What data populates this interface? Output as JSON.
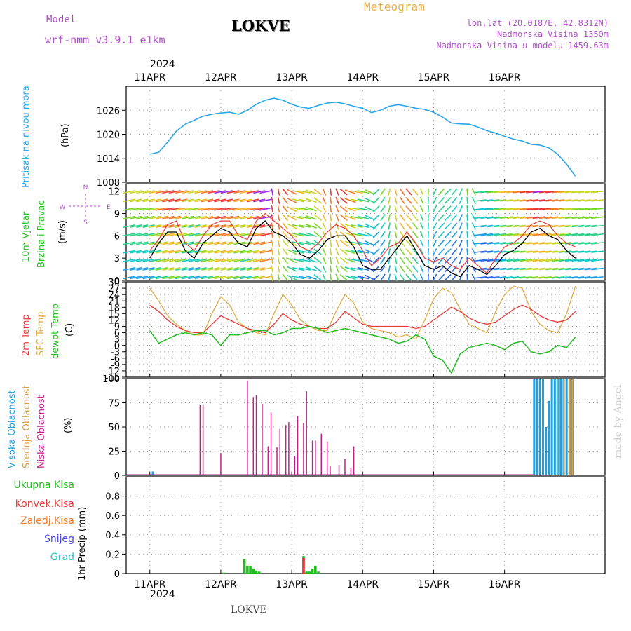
{
  "header": {
    "model_label": "Model",
    "model_name": "wrf-nmm_v3.9.1 e1km",
    "station": "LOKVE",
    "chart_name": "Meteogram",
    "coords": "lon,lat (20.0187E, 42.8312N)",
    "altitude": "Nadmorska Visina 1350m",
    "model_altitude": "Nadmorska Visina u modelu 1459.63m",
    "year_top": "2024",
    "year_bottom": "2024",
    "footer_station": "LOKVE",
    "watermark": "made by Angel"
  },
  "colors": {
    "pressure": "#2ba6e6",
    "temp2m": "#e83a3a",
    "sfc_temp": "#dcae4a",
    "dewpt": "#22bb22",
    "high_cloud": "#1e9fe0",
    "mid_cloud": "#d4a24a",
    "low_cloud": "#c0208a",
    "total_rain": "#22bb22",
    "conv_rain": "#e83a3a",
    "frozen_rain": "#f07a2a",
    "snow": "#4a4ae0",
    "hail": "#2ac0c0",
    "wind_speed": "#000000",
    "gust": "#e83a3a",
    "model_text": "#b050c8",
    "meteogram_text": "#e0b050"
  },
  "chart_data": [
    {
      "type": "line",
      "id": "pressure",
      "ylabel_lines": [
        "Pritisak na nivou mora"
      ],
      "unit": "(hPa)",
      "x_ticks": [
        "11APR",
        "12APR",
        "13APR",
        "14APR",
        "15APR",
        "16APR"
      ],
      "ylim": [
        1008,
        1032
      ],
      "y_ticks": [
        1008,
        1014,
        1020,
        1026
      ],
      "grid": true,
      "x": [
        0,
        3,
        6,
        9,
        12,
        15,
        18,
        21,
        24,
        27,
        30,
        33,
        36,
        39,
        42,
        45,
        48,
        51,
        54,
        57,
        60,
        63,
        66,
        69,
        72,
        75,
        78,
        81,
        84,
        87,
        90,
        93,
        96,
        99,
        102,
        105,
        108,
        111,
        114,
        117,
        120,
        123,
        126,
        129,
        132,
        135,
        138,
        141,
        144
      ],
      "series": [
        {
          "values": [
            1015,
            1015.5,
            1018,
            1020.8,
            1022.5,
            1023.5,
            1024.5,
            1025,
            1025.3,
            1025.5,
            1025,
            1026,
            1027.5,
            1028.5,
            1029,
            1028.5,
            1027.5,
            1026.8,
            1026.5,
            1027.2,
            1027.8,
            1028,
            1027.6,
            1027,
            1026.5,
            1025.4,
            1026,
            1027,
            1027.4,
            1027,
            1026.5,
            1026.2,
            1025.5,
            1024.3,
            1022.8,
            1022.6,
            1022.5,
            1021.8,
            1020.9,
            1020.3,
            1019.5,
            1018.8,
            1018.3,
            1017.5,
            1017.3,
            1016.6,
            1015,
            1012.5,
            1009.5
          ]
        }
      ]
    },
    {
      "type": "line",
      "id": "wind",
      "ylabel_lines": [
        "10m Vjetar",
        "Brzina i Pravac"
      ],
      "unit": "(m/s)",
      "compass": [
        "N",
        "S",
        "W",
        "E"
      ],
      "ylim": [
        0,
        13
      ],
      "y_ticks": [
        0,
        3,
        6,
        9,
        12
      ],
      "grid": true,
      "x": [
        0,
        3,
        6,
        9,
        12,
        15,
        18,
        21,
        24,
        27,
        30,
        33,
        36,
        39,
        42,
        45,
        48,
        51,
        54,
        57,
        60,
        63,
        66,
        69,
        72,
        75,
        78,
        81,
        84,
        87,
        90,
        93,
        96,
        99,
        102,
        105,
        108,
        111,
        114,
        117,
        120,
        123,
        126,
        129,
        132,
        135,
        138,
        141,
        144
      ],
      "series": [
        {
          "values": [
            3,
            5,
            6.5,
            6.5,
            4,
            3,
            5,
            6,
            7,
            6.5,
            5,
            4.5,
            7,
            8,
            6.5,
            6,
            5,
            3.5,
            3,
            4,
            5.5,
            6,
            6,
            4.5,
            2,
            1.5,
            1.5,
            3,
            4.5,
            6,
            4,
            2,
            1.5,
            2,
            1,
            0.5,
            2,
            1.5,
            0.8,
            2,
            3.5,
            4,
            5,
            6.5,
            7,
            6,
            5.5,
            4,
            3
          ]
        },
        {
          "values": [
            4,
            5.5,
            7.5,
            8,
            5,
            4,
            6,
            7.5,
            8,
            8,
            6,
            5.5,
            8,
            9,
            8,
            7,
            6,
            4.5,
            4,
            5,
            6.5,
            7.5,
            7,
            6,
            4,
            2,
            3,
            4.5,
            5,
            6.5,
            5,
            3,
            2.5,
            3,
            2,
            1.5,
            3,
            2,
            1,
            3,
            4.5,
            5,
            6,
            7.5,
            8,
            7.5,
            6,
            5,
            4.5
          ]
        }
      ]
    },
    {
      "type": "line",
      "id": "temperature",
      "ylabel_lines": [
        "2m Temp",
        "SFC Temp",
        "dewpt Temp"
      ],
      "unit": "(C)",
      "ylim": [
        -15,
        30
      ],
      "y_ticks": [
        -15,
        -12,
        -9,
        -6,
        -3,
        0,
        3,
        6,
        9,
        12,
        15,
        18,
        21,
        24,
        27,
        30
      ],
      "grid": true,
      "x": [
        0,
        3,
        6,
        9,
        12,
        15,
        18,
        21,
        24,
        27,
        30,
        33,
        36,
        39,
        42,
        45,
        48,
        51,
        54,
        57,
        60,
        63,
        66,
        69,
        72,
        75,
        78,
        81,
        84,
        87,
        90,
        93,
        96,
        99,
        102,
        105,
        108,
        111,
        114,
        117,
        120,
        123,
        126,
        129,
        132,
        135,
        138,
        141,
        144
      ],
      "series": [
        {
          "name": "2m Temp",
          "values": [
            19,
            16,
            12,
            9,
            7,
            6,
            6,
            10,
            14,
            12,
            10,
            8,
            7,
            6,
            10,
            15,
            12,
            10,
            9,
            8,
            8,
            11,
            16,
            13,
            10,
            9,
            9,
            9,
            9,
            9,
            8,
            9,
            12,
            15,
            18,
            16,
            13,
            11,
            10,
            11,
            14,
            17,
            19,
            17,
            14,
            12,
            11,
            12,
            16
          ]
        },
        {
          "name": "SFC Temp",
          "values": [
            27,
            21,
            14,
            10,
            7,
            5,
            5,
            15,
            23,
            19,
            11,
            8,
            6,
            5,
            15,
            24,
            19,
            12,
            9,
            7,
            7,
            16,
            24,
            20,
            11,
            8,
            7,
            6,
            4,
            5,
            3,
            12,
            22,
            27,
            25,
            17,
            10,
            8,
            6,
            16,
            24,
            28,
            27,
            16,
            10,
            7,
            6,
            15,
            28
          ]
        },
        {
          "name": "dewpt Temp",
          "values": [
            7,
            1,
            3,
            5,
            6,
            5,
            6,
            5,
            0,
            5,
            5,
            6,
            7,
            7,
            5,
            6,
            8,
            8,
            9,
            8,
            6,
            7,
            8,
            7,
            6,
            5,
            4,
            3,
            1,
            2,
            5,
            3,
            -5,
            -7,
            -13,
            -4,
            -1,
            0,
            1,
            0,
            -2,
            1,
            2,
            -3,
            -4,
            -3,
            0,
            -1,
            4
          ]
        }
      ]
    },
    {
      "type": "bar",
      "id": "cloud",
      "ylabel_lines": [
        "Visoka Oblacnost",
        "Srednja Oblacnost",
        "Niska Oblacnost"
      ],
      "unit": "(%)",
      "ylim": [
        0,
        100
      ],
      "y_ticks": [
        0,
        25,
        50,
        75,
        100
      ],
      "grid": true,
      "series": [
        {
          "name": "Visoka Oblacnost",
          "x": [
            1,
            130,
            131,
            132,
            133,
            134,
            135,
            136,
            137,
            138,
            139,
            140,
            141,
            142,
            143
          ],
          "values": [
            4,
            100,
            100,
            100,
            100,
            50,
            77,
            100,
            100,
            100,
            100,
            100,
            100,
            100,
            100
          ]
        },
        {
          "name": "Srednja Oblacnost",
          "x": [
            138,
            140,
            142,
            143
          ],
          "values": [
            100,
            100,
            100,
            100
          ]
        },
        {
          "name": "Niska Oblacnost",
          "x": [
            17,
            18,
            24,
            33,
            35,
            36,
            38,
            40,
            41,
            43,
            44,
            46,
            47,
            49,
            50,
            52,
            53,
            55,
            56,
            58,
            60,
            61,
            64,
            66,
            68,
            69,
            71,
            73
          ],
          "values": [
            73,
            73,
            23,
            98,
            81,
            83,
            74,
            30,
            65,
            29,
            48,
            52,
            55,
            20,
            61,
            54,
            87,
            36,
            36,
            43,
            35,
            10,
            11,
            17,
            8,
            30,
            0,
            0
          ]
        }
      ]
    },
    {
      "type": "bar",
      "id": "precip",
      "ylabel_lines": [
        "Ukupna Kisa",
        "Konvek.Kisa",
        "Zaledj.Kisa",
        "Snijeg",
        "Grad"
      ],
      "unit": "1hr Precip (mm)",
      "ylim": [
        0,
        1
      ],
      "y_ticks": [
        0,
        0.2,
        0.4,
        0.6,
        0.8
      ],
      "grid": true,
      "x_ticks": [
        "11APR",
        "12APR",
        "13APR",
        "14APR",
        "15APR",
        "16APR"
      ],
      "series": [
        {
          "name": "Ukupna Kisa",
          "x": [
            25,
            32,
            33,
            34,
            35,
            36,
            37,
            52,
            53,
            54,
            55,
            56,
            57
          ],
          "values": [
            0.01,
            0.15,
            0.08,
            0.08,
            0.05,
            0.03,
            0.02,
            0.18,
            0.02,
            0.02,
            0.05,
            0.08,
            0.02
          ]
        },
        {
          "name": "Konvek.Kisa",
          "x": [
            52
          ],
          "values": [
            0.16
          ]
        }
      ]
    }
  ]
}
